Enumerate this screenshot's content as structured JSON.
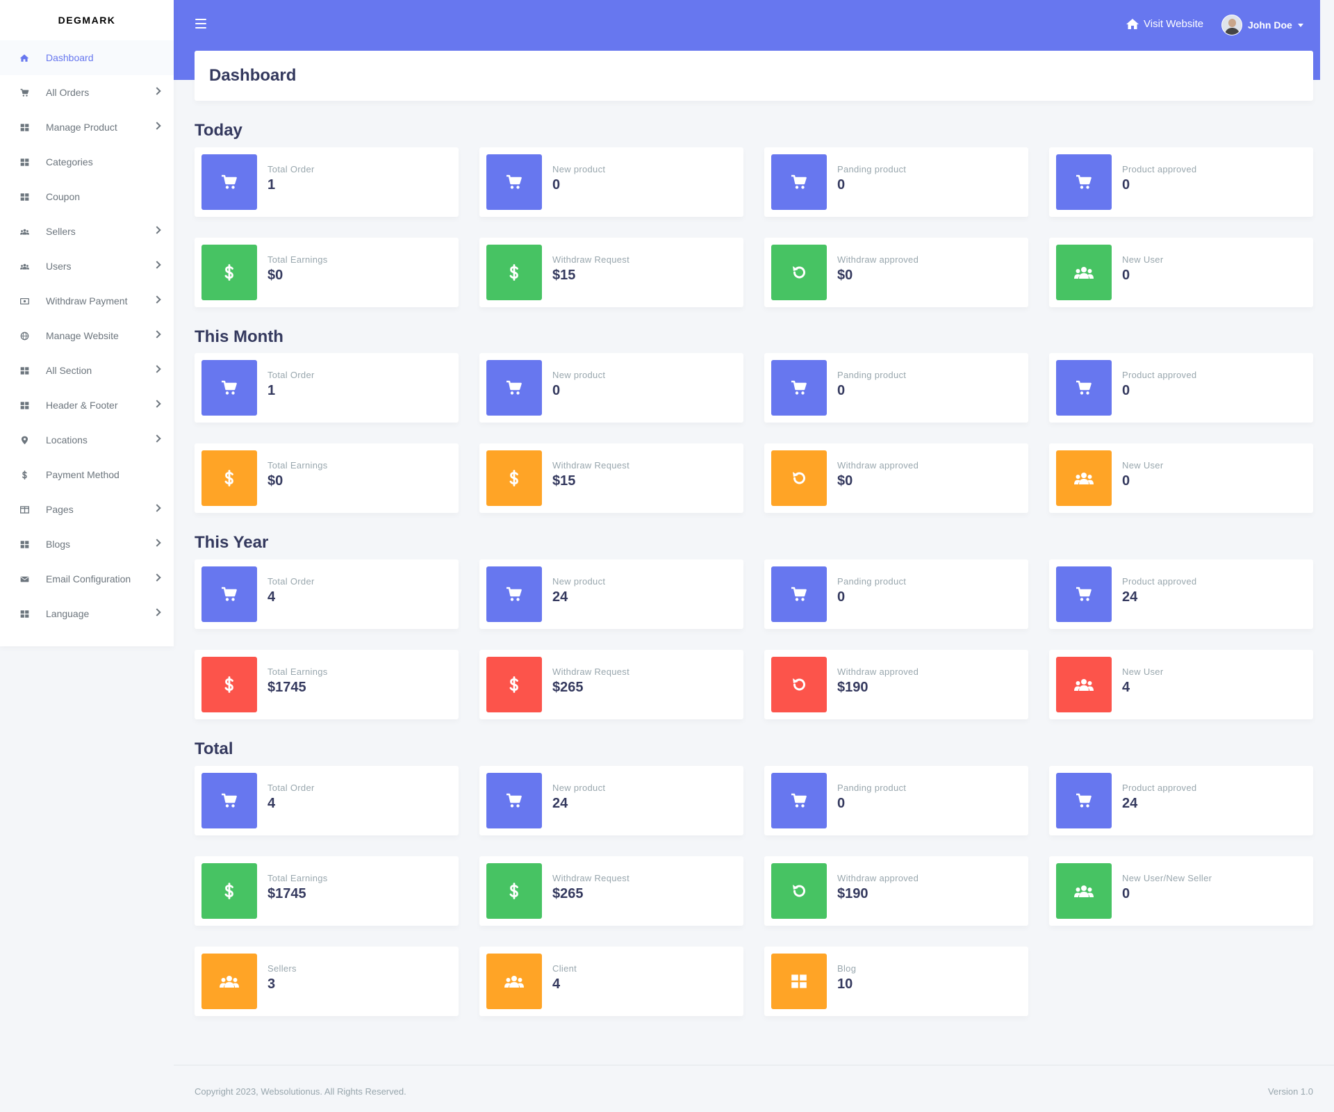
{
  "brand": "DEGMARK",
  "topbar": {
    "visit_label": "Visit Website",
    "user_name": "John Doe",
    "accent": "#6777ef"
  },
  "sidebar": {
    "items": [
      {
        "label": "Dashboard",
        "icon": "home-icon",
        "active": true,
        "chevron": false
      },
      {
        "label": "All Orders",
        "icon": "cart-icon",
        "chevron": true
      },
      {
        "label": "Manage Product",
        "icon": "grid-icon",
        "chevron": true
      },
      {
        "label": "Categories",
        "icon": "grid-icon",
        "chevron": false
      },
      {
        "label": "Coupon",
        "icon": "grid-icon",
        "chevron": false
      },
      {
        "label": "Sellers",
        "icon": "users-icon",
        "chevron": true
      },
      {
        "label": "Users",
        "icon": "users-icon",
        "chevron": true
      },
      {
        "label": "Withdraw Payment",
        "icon": "money-icon",
        "chevron": true
      },
      {
        "label": "Manage Website",
        "icon": "globe-icon",
        "chevron": true
      },
      {
        "label": "All Section",
        "icon": "grid-icon",
        "chevron": true
      },
      {
        "label": "Header & Footer",
        "icon": "grid-icon",
        "chevron": true
      },
      {
        "label": "Locations",
        "icon": "map-pin-icon",
        "chevron": true
      },
      {
        "label": "Payment Method",
        "icon": "dollar-icon",
        "chevron": false
      },
      {
        "label": "Pages",
        "icon": "columns-icon",
        "chevron": true
      },
      {
        "label": "Blogs",
        "icon": "grid-icon",
        "chevron": true
      },
      {
        "label": "Email Configuration",
        "icon": "envelope-icon",
        "chevron": true
      },
      {
        "label": "Language",
        "icon": "grid-icon",
        "chevron": true
      }
    ]
  },
  "page_title": "Dashboard",
  "sections": [
    {
      "title": "Today",
      "cards": [
        {
          "label": "Total Order",
          "value": "1",
          "icon": "cart-icon",
          "color": "#6777ef"
        },
        {
          "label": "New product",
          "value": "0",
          "icon": "cart-icon",
          "color": "#6777ef"
        },
        {
          "label": "Panding product",
          "value": "0",
          "icon": "cart-icon",
          "color": "#6777ef"
        },
        {
          "label": "Product approved",
          "value": "0",
          "icon": "cart-icon",
          "color": "#6777ef"
        },
        {
          "label": "Total Earnings",
          "value": "$0",
          "icon": "dollar-icon",
          "color": "#47c363"
        },
        {
          "label": "Withdraw Request",
          "value": "$15",
          "icon": "dollar-icon",
          "color": "#47c363"
        },
        {
          "label": "Withdraw approved",
          "value": "$0",
          "icon": "undo-icon",
          "color": "#47c363"
        },
        {
          "label": "New User",
          "value": "0",
          "icon": "users-icon",
          "color": "#47c363"
        }
      ]
    },
    {
      "title": "This Month",
      "cards": [
        {
          "label": "Total Order",
          "value": "1",
          "icon": "cart-icon",
          "color": "#6777ef"
        },
        {
          "label": "New product",
          "value": "0",
          "icon": "cart-icon",
          "color": "#6777ef"
        },
        {
          "label": "Panding product",
          "value": "0",
          "icon": "cart-icon",
          "color": "#6777ef"
        },
        {
          "label": "Product approved",
          "value": "0",
          "icon": "cart-icon",
          "color": "#6777ef"
        },
        {
          "label": "Total Earnings",
          "value": "$0",
          "icon": "dollar-icon",
          "color": "#ffa426"
        },
        {
          "label": "Withdraw Request",
          "value": "$15",
          "icon": "dollar-icon",
          "color": "#ffa426"
        },
        {
          "label": "Withdraw approved",
          "value": "$0",
          "icon": "undo-icon",
          "color": "#ffa426"
        },
        {
          "label": "New User",
          "value": "0",
          "icon": "users-icon",
          "color": "#ffa426"
        }
      ]
    },
    {
      "title": "This Year",
      "cards": [
        {
          "label": "Total Order",
          "value": "4",
          "icon": "cart-icon",
          "color": "#6777ef"
        },
        {
          "label": "New product",
          "value": "24",
          "icon": "cart-icon",
          "color": "#6777ef"
        },
        {
          "label": "Panding product",
          "value": "0",
          "icon": "cart-icon",
          "color": "#6777ef"
        },
        {
          "label": "Product approved",
          "value": "24",
          "icon": "cart-icon",
          "color": "#6777ef"
        },
        {
          "label": "Total Earnings",
          "value": "$1745",
          "icon": "dollar-icon",
          "color": "#fc544b"
        },
        {
          "label": "Withdraw Request",
          "value": "$265",
          "icon": "dollar-icon",
          "color": "#fc544b"
        },
        {
          "label": "Withdraw approved",
          "value": "$190",
          "icon": "undo-icon",
          "color": "#fc544b"
        },
        {
          "label": "New User",
          "value": "4",
          "icon": "users-icon",
          "color": "#fc544b"
        }
      ]
    },
    {
      "title": "Total",
      "cards": [
        {
          "label": "Total Order",
          "value": "4",
          "icon": "cart-icon",
          "color": "#6777ef"
        },
        {
          "label": "New product",
          "value": "24",
          "icon": "cart-icon",
          "color": "#6777ef"
        },
        {
          "label": "Panding product",
          "value": "0",
          "icon": "cart-icon",
          "color": "#6777ef"
        },
        {
          "label": "Product approved",
          "value": "24",
          "icon": "cart-icon",
          "color": "#6777ef"
        },
        {
          "label": "Total Earnings",
          "value": "$1745",
          "icon": "dollar-icon",
          "color": "#47c363"
        },
        {
          "label": "Withdraw Request",
          "value": "$265",
          "icon": "dollar-icon",
          "color": "#47c363"
        },
        {
          "label": "Withdraw approved",
          "value": "$190",
          "icon": "undo-icon",
          "color": "#47c363"
        },
        {
          "label": "New User/New Seller",
          "value": "0",
          "icon": "users-icon",
          "color": "#47c363"
        },
        {
          "label": "Sellers",
          "value": "3",
          "icon": "users-icon",
          "color": "#ffa426"
        },
        {
          "label": "Client",
          "value": "4",
          "icon": "users-icon",
          "color": "#ffa426"
        },
        {
          "label": "Blog",
          "value": "10",
          "icon": "grid-icon",
          "color": "#ffa426"
        }
      ]
    }
  ],
  "footer": {
    "copyright": "Copyright 2023, Websolutionus. All Rights Reserved.",
    "version": "Version 1.0"
  }
}
